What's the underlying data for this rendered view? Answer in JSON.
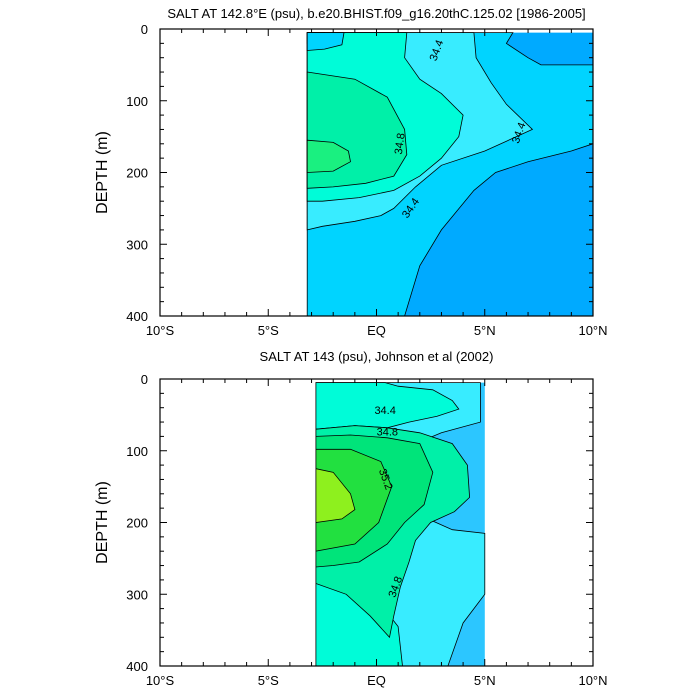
{
  "chart_data": [
    {
      "type": "contour",
      "title": "SALT AT 142.8°E (psu), b.e20.BHIST.f09_g16.20thC.125.02 [1986-2005]",
      "xlabel": "",
      "ylabel": "DEPTH (m)",
      "xlim": [
        -10,
        10
      ],
      "ylim": [
        400,
        0
      ],
      "x_ticks": [
        -10,
        -5,
        0,
        5,
        10
      ],
      "x_tick_labels": [
        "10°S",
        "5°S",
        "EQ",
        "5°N",
        "10°N"
      ],
      "y_ticks": [
        0,
        100,
        200,
        300,
        400
      ],
      "y_tick_labels": [
        "0",
        "100",
        "200",
        "300",
        "400"
      ],
      "data_extent": {
        "lat": [
          -3.2,
          10
        ],
        "depth": [
          5,
          400
        ]
      },
      "contour_interval": 0.2,
      "levels": [
        34.0,
        34.2,
        34.4,
        34.6,
        34.8,
        35.0
      ],
      "colors": [
        "#00aaff",
        "#00d4ff",
        "#38ecff",
        "#00fcd8",
        "#00f0a8",
        "#1af080"
      ],
      "contour_labels": [
        {
          "text": "34.4",
          "lat": 2.8,
          "depth": 30
        },
        {
          "text": "34.4",
          "lat": 6.6,
          "depth": 145
        },
        {
          "text": "34.8",
          "lat": 1.1,
          "depth": 160
        },
        {
          "text": "34.4",
          "lat": 1.6,
          "depth": 250
        }
      ]
    },
    {
      "type": "contour",
      "title": "SALT AT 143 (psu), Johnson et al (2002)",
      "xlabel": "",
      "ylabel": "DEPTH (m)",
      "xlim": [
        -10,
        10
      ],
      "ylim": [
        400,
        0
      ],
      "x_ticks": [
        -10,
        -5,
        0,
        5,
        10
      ],
      "x_tick_labels": [
        "10°S",
        "5°S",
        "EQ",
        "5°N",
        "10°N"
      ],
      "y_ticks": [
        0,
        100,
        200,
        300,
        400
      ],
      "y_tick_labels": [
        "0",
        "100",
        "200",
        "300",
        "400"
      ],
      "data_extent": {
        "lat": [
          -2.8,
          5
        ],
        "depth": [
          5,
          400
        ]
      },
      "contour_interval": 0.2,
      "levels": [
        34.2,
        34.4,
        34.6,
        34.8,
        35.0,
        35.2,
        35.4
      ],
      "colors": [
        "#2cc6ff",
        "#38ecff",
        "#00fcd8",
        "#00f0a8",
        "#00e47a",
        "#22e040",
        "#8ef01e"
      ],
      "contour_labels": [
        {
          "text": "34.4",
          "lat": 0.4,
          "depth": 45
        },
        {
          "text": "34.8",
          "lat": 0.5,
          "depth": 75
        },
        {
          "text": "35.2",
          "lat": 0.4,
          "depth": 140
        },
        {
          "text": "34.8",
          "lat": 0.9,
          "depth": 290
        }
      ]
    }
  ]
}
